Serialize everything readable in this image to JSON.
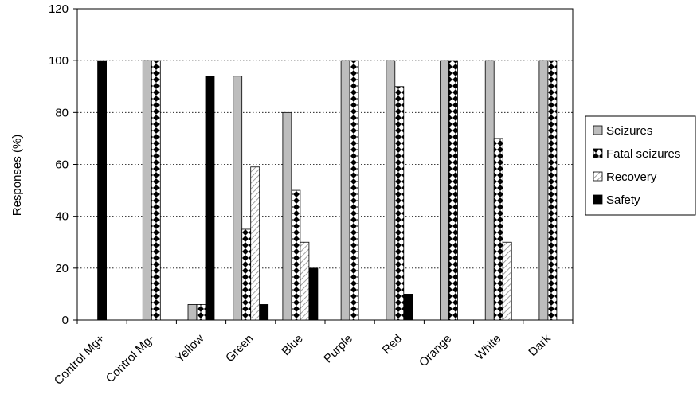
{
  "chart_data": {
    "type": "bar",
    "title": "",
    "xlabel": "",
    "ylabel": "Responses (%)",
    "ylim": [
      0,
      120
    ],
    "yticks": [
      0,
      20,
      40,
      60,
      80,
      100,
      120
    ],
    "grid": "horizontal-dotted",
    "legend_position": "right",
    "categories": [
      "Control Mg+",
      "Control Mg-",
      "Yellow",
      "Green",
      "Blue",
      "Purple",
      "Red",
      "Orange",
      "White",
      "Dark"
    ],
    "series": [
      {
        "name": "Seizures",
        "pattern": "gray",
        "values": [
          0,
          100,
          6,
          94,
          80,
          100,
          100,
          100,
          100,
          100
        ]
      },
      {
        "name": "Fatal seizures",
        "pattern": "diamonds",
        "values": [
          0,
          100,
          6,
          35,
          50,
          100,
          90,
          100,
          70,
          100
        ]
      },
      {
        "name": "Recovery",
        "pattern": "diagonal",
        "values": [
          0,
          0,
          0,
          59,
          30,
          0,
          0,
          0,
          30,
          0
        ]
      },
      {
        "name": "Safety",
        "pattern": "black",
        "values": [
          100,
          0,
          94,
          6,
          20,
          0,
          10,
          0,
          0,
          0
        ]
      }
    ]
  }
}
